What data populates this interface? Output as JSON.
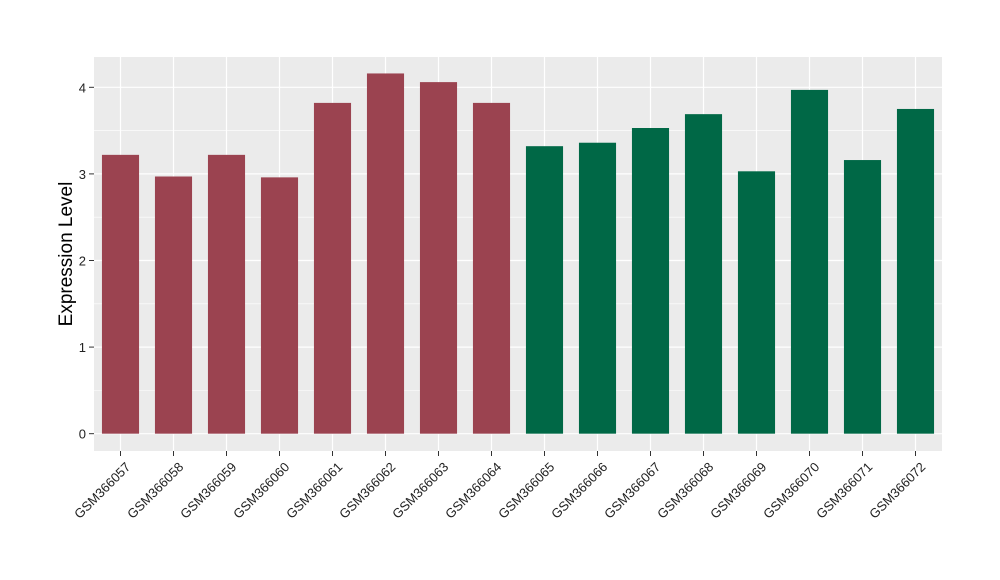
{
  "chart_data": {
    "type": "bar",
    "title": "",
    "xlabel": "",
    "ylabel": "Expression Level",
    "ylim": [
      -0.2,
      4.35
    ],
    "yticks": [
      "0",
      "1",
      "2",
      "3",
      "4"
    ],
    "grid": true,
    "legend": "none",
    "categories": [
      "GSM366057",
      "GSM366058",
      "GSM366059",
      "GSM366060",
      "GSM366061",
      "GSM366062",
      "GSM366063",
      "GSM366064",
      "GSM366065",
      "GSM366066",
      "GSM366067",
      "GSM366068",
      "GSM366069",
      "GSM366070",
      "GSM366071",
      "GSM366072"
    ],
    "values": [
      3.22,
      2.97,
      3.22,
      2.96,
      3.82,
      4.16,
      4.06,
      3.82,
      3.32,
      3.36,
      3.53,
      3.69,
      3.03,
      3.97,
      3.16,
      3.75
    ],
    "groups": [
      "A",
      "A",
      "A",
      "A",
      "A",
      "A",
      "A",
      "A",
      "B",
      "B",
      "B",
      "B",
      "B",
      "B",
      "B",
      "B"
    ],
    "colors": {
      "A": "#9B4350",
      "B": "#006846"
    },
    "panel_background": "#EBEBEB",
    "grid_color": "#FFFFFF"
  }
}
